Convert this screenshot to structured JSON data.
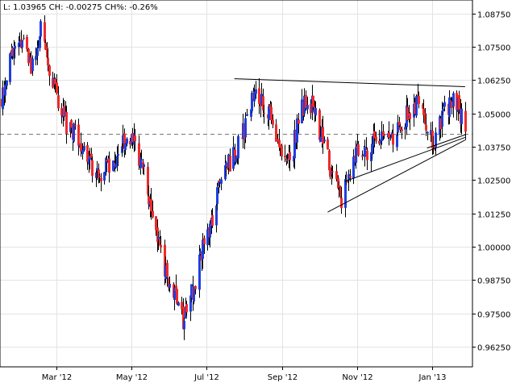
{
  "header": {
    "text": "L: 1.03965 CH: -0.00275 CH%: -0.26%"
  },
  "colors": {
    "bull": "#1f3fdf",
    "bear": "#ef2a2a",
    "wick": "#000000",
    "grid": "#e3e3e3",
    "ref": "#777777",
    "trend": "#000000"
  },
  "chart_data": {
    "type": "candlestick",
    "title": "",
    "xlabel": "",
    "ylabel": "",
    "ylim": [
      0.955,
      1.0925
    ],
    "xlim": [
      "2012-01-15",
      "2013-02-03"
    ],
    "grid": true,
    "x_ticks": [
      {
        "label": "Mar '12",
        "date": "2012-03-01"
      },
      {
        "label": "May '12",
        "date": "2012-05-01"
      },
      {
        "label": "Jul '12",
        "date": "2012-07-01"
      },
      {
        "label": "Sep '12",
        "date": "2012-09-01"
      },
      {
        "label": "Nov '12",
        "date": "2012-11-01"
      },
      {
        "label": "Jan '13",
        "date": "2013-01-01"
      }
    ],
    "y_ticks": [
      {
        "label": "0.96250",
        "value": 0.9625
      },
      {
        "label": "0.97500",
        "value": 0.975
      },
      {
        "label": "0.98750",
        "value": 0.9875
      },
      {
        "label": "1.00000",
        "value": 1.0
      },
      {
        "label": "1.01250",
        "value": 1.0125
      },
      {
        "label": "1.02500",
        "value": 1.025
      },
      {
        "label": "1.03750",
        "value": 1.0375
      },
      {
        "label": "1.05000",
        "value": 1.05
      },
      {
        "label": "1.06250",
        "value": 1.0625
      },
      {
        "label": "1.07500",
        "value": 1.075
      },
      {
        "label": "1.08750",
        "value": 1.0875
      }
    ],
    "reference_line": {
      "value": 1.04225
    },
    "trend_lines": [
      {
        "from": [
          "2012-07-24",
          1.063
        ],
        "to": [
          "2013-01-28",
          1.06
        ]
      },
      {
        "from": [
          "2012-10-08",
          1.013
        ],
        "to": [
          "2013-01-28",
          1.04
        ]
      },
      {
        "from": [
          "2012-10-22",
          1.0245
        ],
        "to": [
          "2013-01-28",
          1.041
        ]
      },
      {
        "from": [
          "2012-12-28",
          1.037
        ],
        "to": [
          "2013-01-28",
          1.042
        ]
      }
    ],
    "anchors": [
      [
        "2012-01-16",
        1.055
      ],
      [
        "2012-01-25",
        1.072
      ],
      [
        "2012-02-03",
        1.079
      ],
      [
        "2012-02-10",
        1.067
      ],
      [
        "2012-02-17",
        1.081
      ],
      [
        "2012-02-24",
        1.068
      ],
      [
        "2012-03-02",
        1.056
      ],
      [
        "2012-03-09",
        1.046
      ],
      [
        "2012-03-16",
        1.042
      ],
      [
        "2012-03-23",
        1.036
      ],
      [
        "2012-03-30",
        1.03
      ],
      [
        "2012-04-06",
        1.027
      ],
      [
        "2012-04-13",
        1.031
      ],
      [
        "2012-04-20",
        1.036
      ],
      [
        "2012-04-27",
        1.042
      ],
      [
        "2012-05-04",
        1.039
      ],
      [
        "2012-05-11",
        1.027
      ],
      [
        "2012-05-18",
        1.014
      ],
      [
        "2012-05-25",
        0.998
      ],
      [
        "2012-06-01",
        0.986
      ],
      [
        "2012-06-08",
        0.979
      ],
      [
        "2012-06-12",
        0.972
      ],
      [
        "2012-06-15",
        0.975
      ],
      [
        "2012-06-22",
        0.988
      ],
      [
        "2012-06-29",
        1.001
      ],
      [
        "2012-07-06",
        1.012
      ],
      [
        "2012-07-13",
        1.024
      ],
      [
        "2012-07-20",
        1.032
      ],
      [
        "2012-07-27",
        1.038
      ],
      [
        "2012-08-03",
        1.047
      ],
      [
        "2012-08-10",
        1.059
      ],
      [
        "2012-08-17",
        1.054
      ],
      [
        "2012-08-24",
        1.047
      ],
      [
        "2012-08-31",
        1.038
      ],
      [
        "2012-09-07",
        1.03
      ],
      [
        "2012-09-14",
        1.047
      ],
      [
        "2012-09-21",
        1.057
      ],
      [
        "2012-09-28",
        1.049
      ],
      [
        "2012-10-05",
        1.038
      ],
      [
        "2012-10-12",
        1.026
      ],
      [
        "2012-10-19",
        1.018
      ],
      [
        "2012-10-26",
        1.026
      ],
      [
        "2012-11-02",
        1.038
      ],
      [
        "2012-11-09",
        1.034
      ],
      [
        "2012-11-16",
        1.04
      ],
      [
        "2012-11-23",
        1.044
      ],
      [
        "2012-11-30",
        1.041
      ],
      [
        "2012-12-07",
        1.046
      ],
      [
        "2012-12-14",
        1.051
      ],
      [
        "2012-12-21",
        1.056
      ],
      [
        "2012-12-25",
        1.046
      ],
      [
        "2012-12-28",
        1.039
      ],
      [
        "2013-01-04",
        1.041
      ],
      [
        "2013-01-11",
        1.05
      ],
      [
        "2013-01-18",
        1.057
      ],
      [
        "2013-01-25",
        1.049
      ],
      [
        "2013-01-28",
        1.04
      ]
    ]
  }
}
